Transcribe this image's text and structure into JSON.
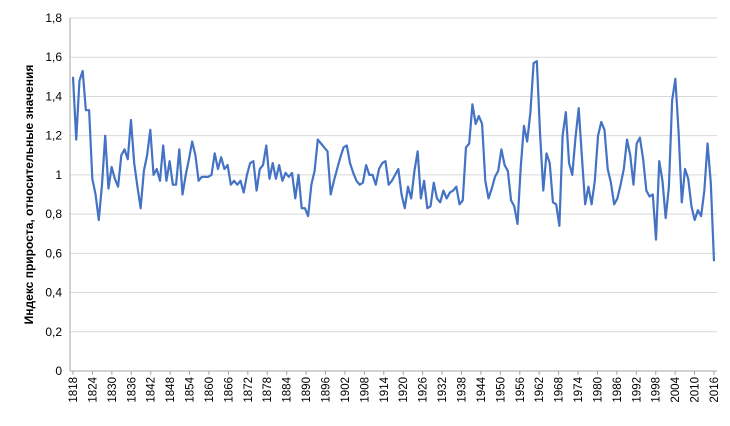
{
  "chart_data": {
    "type": "line",
    "title": "",
    "xlabel": "",
    "ylabel": "Индекс прироста, относительные значения",
    "x_start": 1818,
    "x_end": 2016,
    "ylim": [
      0,
      1.8
    ],
    "y_ticks": [
      "0",
      "0,2",
      "0,4",
      "0,6",
      "0,8",
      "1",
      "1,2",
      "1,4",
      "1,6",
      "1,8"
    ],
    "x_ticks": [
      "1818",
      "1824",
      "1830",
      "1836",
      "1842",
      "1848",
      "1854",
      "1860",
      "1866",
      "1872",
      "1878",
      "1884",
      "1890",
      "1896",
      "1902",
      "1908",
      "1914",
      "1920",
      "1926",
      "1932",
      "1938",
      "1944",
      "1950",
      "1956",
      "1962",
      "1968",
      "1974",
      "1980",
      "1986",
      "1992",
      "1998",
      "2004",
      "2010",
      "2016"
    ],
    "grid": "horizontal",
    "line_color": "#4472C4",
    "series": [
      {
        "name": "",
        "values": [
          1.5,
          1.18,
          1.48,
          1.53,
          1.33,
          1.33,
          0.98,
          0.9,
          0.77,
          0.95,
          1.2,
          0.93,
          1.04,
          0.98,
          0.94,
          1.1,
          1.13,
          1.08,
          1.28,
          1.06,
          0.94,
          0.83,
          1.02,
          1.1,
          1.23,
          1.0,
          1.03,
          0.97,
          1.15,
          0.97,
          1.07,
          0.95,
          0.95,
          1.13,
          0.9,
          1.0,
          1.08,
          1.17,
          1.1,
          0.97,
          0.99,
          0.99,
          0.99,
          1.0,
          1.11,
          1.03,
          1.09,
          1.03,
          1.05,
          0.95,
          0.97,
          0.95,
          0.97,
          0.91,
          1.0,
          1.06,
          1.07,
          0.92,
          1.03,
          1.05,
          1.15,
          0.98,
          1.06,
          0.98,
          1.05,
          0.97,
          1.01,
          0.99,
          1.01,
          0.88,
          1.0,
          0.83,
          0.83,
          0.79,
          0.95,
          1.02,
          1.18,
          1.16,
          1.14,
          1.12,
          0.9,
          0.97,
          1.03,
          1.09,
          1.14,
          1.15,
          1.06,
          1.01,
          0.97,
          0.95,
          0.96,
          1.05,
          1.0,
          1.0,
          0.95,
          1.03,
          1.06,
          1.07,
          0.95,
          0.97,
          1.0,
          1.03,
          0.9,
          0.83,
          0.94,
          0.88,
          1.02,
          1.12,
          0.88,
          0.97,
          0.83,
          0.84,
          0.96,
          0.88,
          0.86,
          0.92,
          0.88,
          0.91,
          0.92,
          0.94,
          0.85,
          0.87,
          1.14,
          1.16,
          1.36,
          1.26,
          1.3,
          1.26,
          0.97,
          0.88,
          0.93,
          0.99,
          1.02,
          1.13,
          1.05,
          1.02,
          0.87,
          0.84,
          0.75,
          1.04,
          1.25,
          1.17,
          1.32,
          1.57,
          1.58,
          1.21,
          0.92,
          1.11,
          1.06,
          0.86,
          0.85,
          0.74,
          1.2,
          1.32,
          1.06,
          1.0,
          1.19,
          1.34,
          1.09,
          0.85,
          0.94,
          0.85,
          0.97,
          1.2,
          1.27,
          1.23,
          1.03,
          0.96,
          0.85,
          0.88,
          0.95,
          1.03,
          1.18,
          1.1,
          0.95,
          1.16,
          1.19,
          1.08,
          0.92,
          0.89,
          0.9,
          0.67,
          1.07,
          0.97,
          0.78,
          0.94,
          1.38,
          1.49,
          1.22,
          0.86,
          1.03,
          0.98,
          0.84,
          0.77,
          0.82,
          0.79,
          0.92,
          1.16,
          0.96,
          0.56
        ]
      }
    ]
  }
}
